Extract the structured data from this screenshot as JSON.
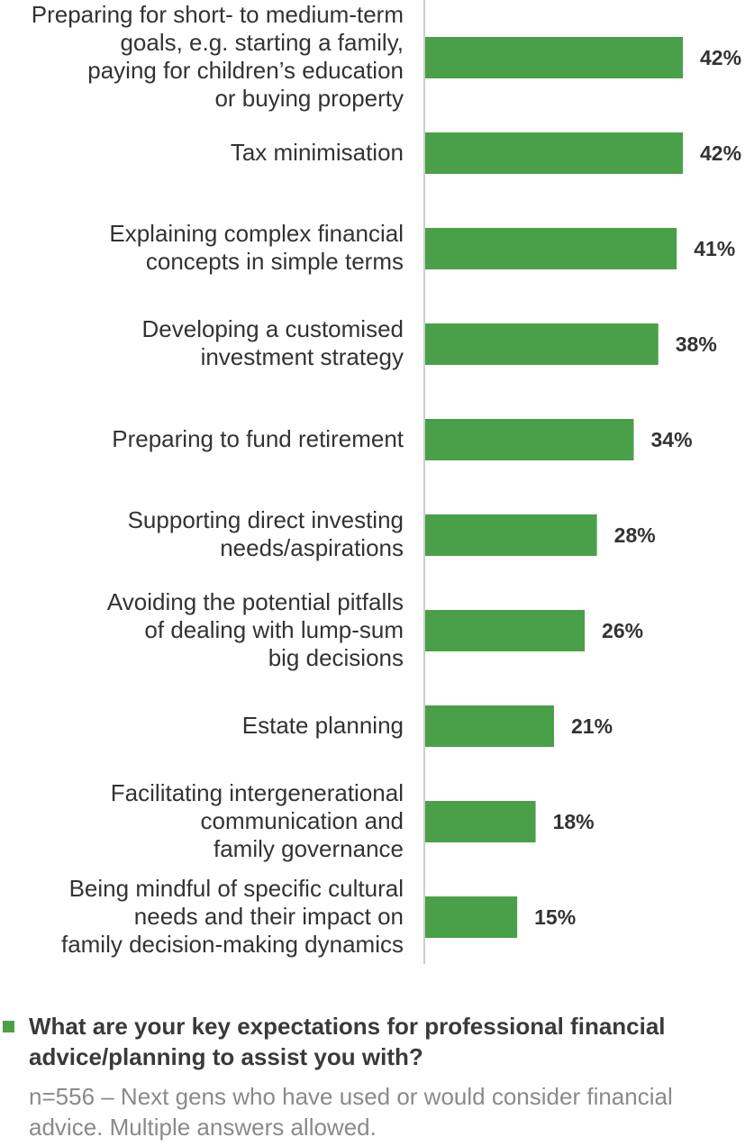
{
  "chart_data": {
    "type": "bar",
    "orientation": "horizontal",
    "categories": [
      "Preparing for short- to medium-term goals, e.g. starting a family, paying for children’s education or buying property",
      "Tax minimisation",
      "Explaining complex financial concepts in simple terms",
      "Developing a customised investment strategy",
      "Preparing to fund retirement",
      "Supporting direct investing needs/aspirations",
      "Avoiding the potential pitfalls of dealing with lump-sum big decisions",
      "Estate planning",
      "Facilitating intergenerational communication and family governance",
      "Being mindful of specific cultural needs and their impact on family decision-making dynamics"
    ],
    "category_lines": [
      [
        "Preparing for short- to medium-term",
        "goals, e.g. starting a family,",
        "paying for children’s education",
        "or buying property"
      ],
      [
        "Tax minimisation"
      ],
      [
        "Explaining complex financial",
        "concepts in simple terms"
      ],
      [
        "Developing a customised",
        "investment strategy"
      ],
      [
        "Preparing to fund retirement"
      ],
      [
        "Supporting direct investing",
        "needs/aspirations"
      ],
      [
        "Avoiding the potential pitfalls",
        "of dealing with lump-sum",
        "big decisions"
      ],
      [
        "Estate planning"
      ],
      [
        "Facilitating intergenerational",
        "communication and",
        "family governance"
      ],
      [
        "Being mindful of specific cultural",
        "needs and their impact on",
        "family decision-making dynamics"
      ]
    ],
    "values": [
      42,
      42,
      41,
      38,
      34,
      28,
      26,
      21,
      18,
      15
    ],
    "value_labels": [
      "42%",
      "42%",
      "41%",
      "38%",
      "34%",
      "28%",
      "26%",
      "21%",
      "18%",
      "15%"
    ],
    "unit": "%",
    "xlim": [
      0,
      45
    ],
    "grid": false,
    "colors": {
      "bar": "#4aa049",
      "axis": "#bbbbbb",
      "text": "#333333"
    }
  },
  "legend": {
    "question": "What are your key expectations for professional financial advice/planning to assist you with?",
    "note": "n=556 – Next gens who have used or would consider financial advice. Multiple answers allowed.",
    "marker_color": "#4aa049"
  }
}
